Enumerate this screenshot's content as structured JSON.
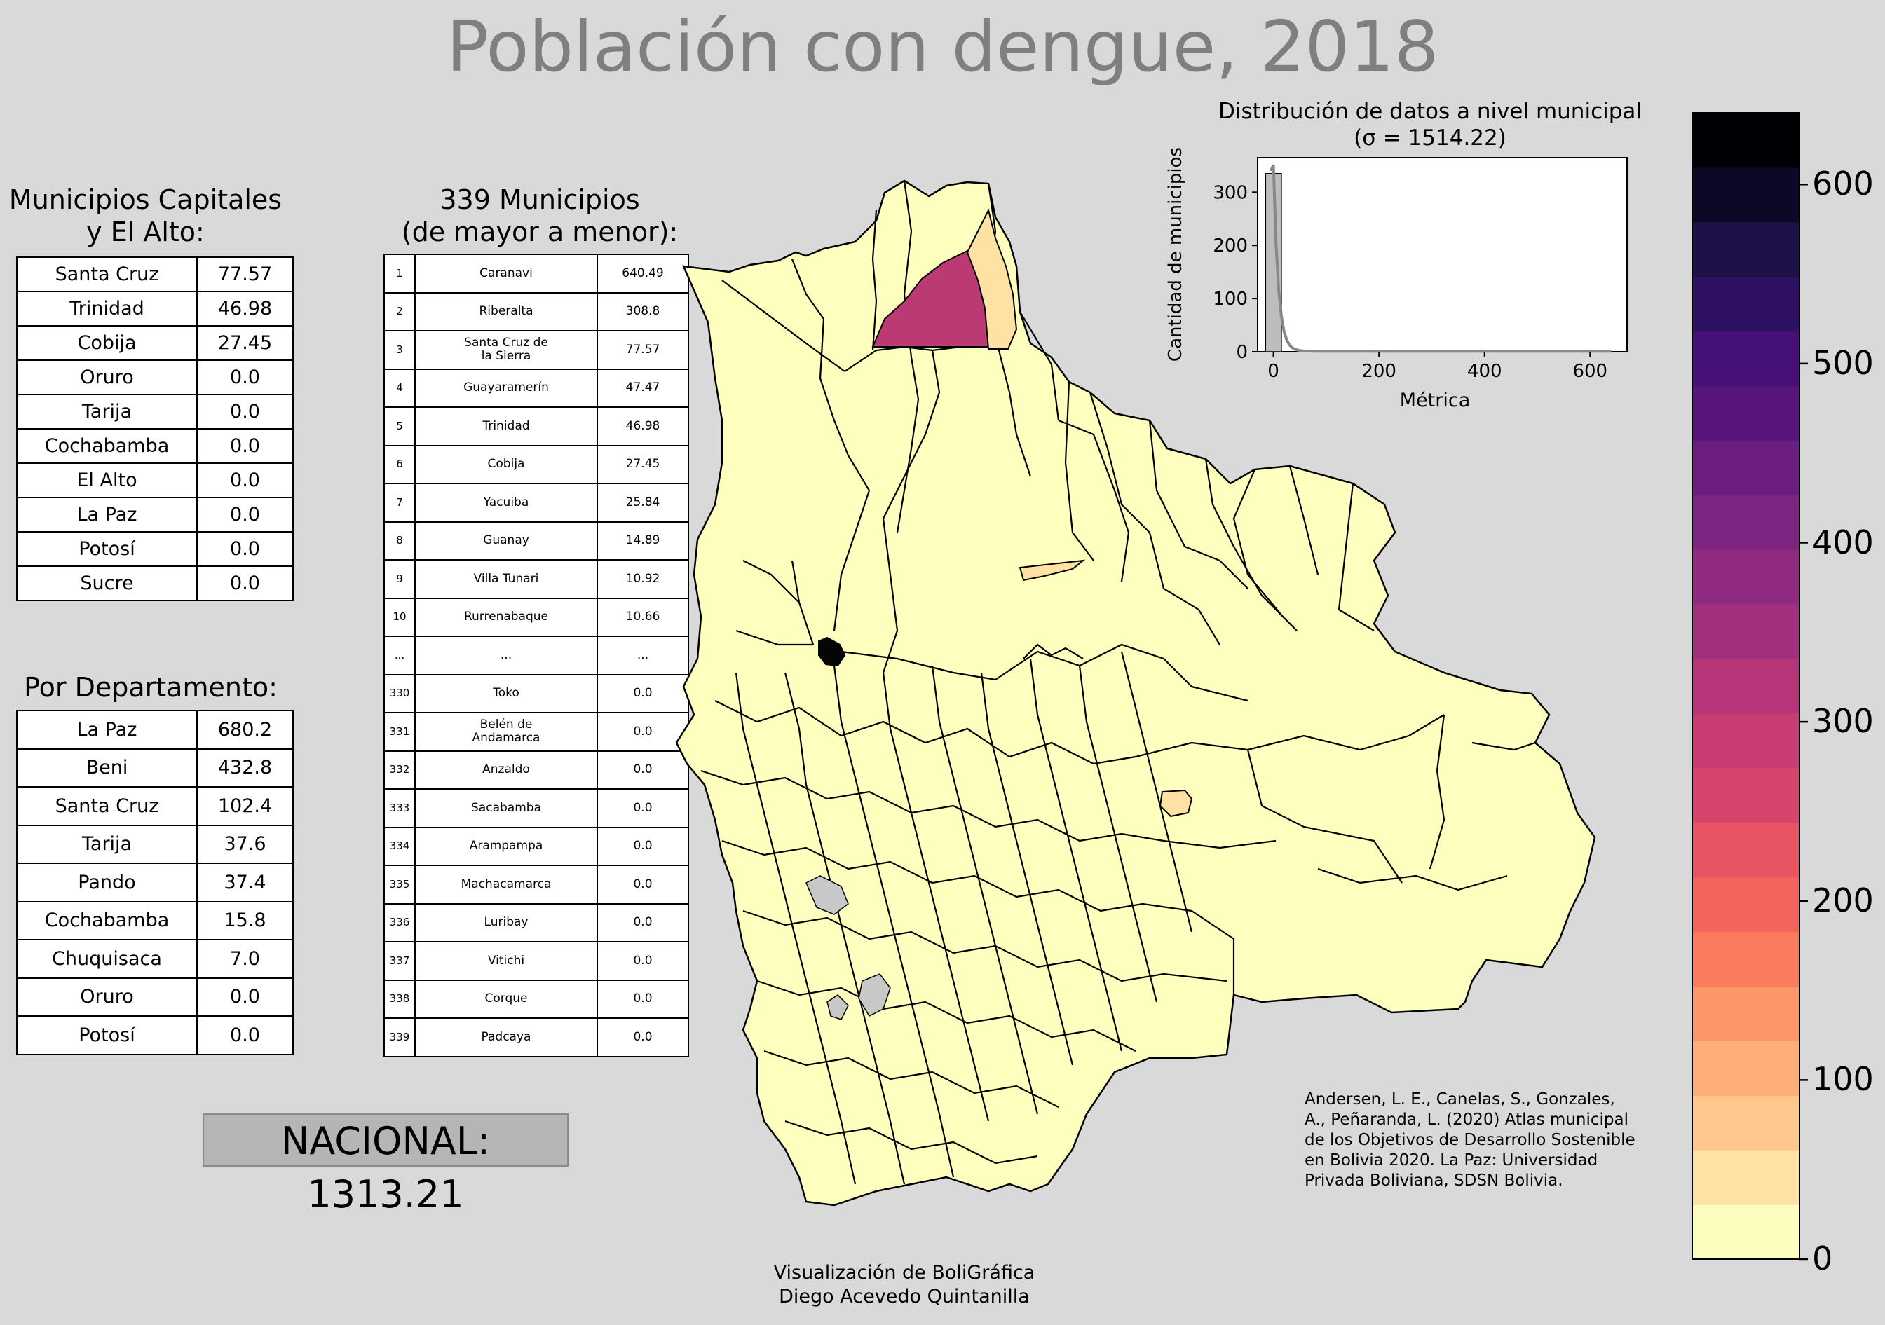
{
  "title": "Población con dengue, 2018",
  "capitals": {
    "title": "Municipios Capitales\ny El Alto:",
    "rows": [
      {
        "name": "Santa Cruz",
        "value": "77.57"
      },
      {
        "name": "Trinidad",
        "value": "46.98"
      },
      {
        "name": "Cobija",
        "value": "27.45"
      },
      {
        "name": "Oruro",
        "value": "0.0"
      },
      {
        "name": "Tarija",
        "value": "0.0"
      },
      {
        "name": "Cochabamba",
        "value": "0.0"
      },
      {
        "name": "El Alto",
        "value": "0.0"
      },
      {
        "name": "La Paz",
        "value": "0.0"
      },
      {
        "name": "Potosí",
        "value": "0.0"
      },
      {
        "name": "Sucre",
        "value": "0.0"
      }
    ]
  },
  "departments": {
    "title": "Por Departamento:",
    "rows": [
      {
        "name": "La Paz",
        "value": "680.2"
      },
      {
        "name": "Beni",
        "value": "432.8"
      },
      {
        "name": "Santa Cruz",
        "value": "102.4"
      },
      {
        "name": "Tarija",
        "value": "37.6"
      },
      {
        "name": "Pando",
        "value": "37.4"
      },
      {
        "name": "Cochabamba",
        "value": "15.8"
      },
      {
        "name": "Chuquisaca",
        "value": "7.0"
      },
      {
        "name": "Oruro",
        "value": "0.0"
      },
      {
        "name": "Potosí",
        "value": "0.0"
      }
    ]
  },
  "municipalities": {
    "title": "339 Municipios\n(de mayor a menor):",
    "rows": [
      {
        "rank": "1",
        "name": "Caranavi",
        "value": "640.49"
      },
      {
        "rank": "2",
        "name": "Riberalta",
        "value": "308.8"
      },
      {
        "rank": "3",
        "name": "Santa Cruz de\nla Sierra",
        "value": "77.57"
      },
      {
        "rank": "4",
        "name": "Guayaramerín",
        "value": "47.47"
      },
      {
        "rank": "5",
        "name": "Trinidad",
        "value": "46.98"
      },
      {
        "rank": "6",
        "name": "Cobija",
        "value": "27.45"
      },
      {
        "rank": "7",
        "name": "Yacuiba",
        "value": "25.84"
      },
      {
        "rank": "8",
        "name": "Guanay",
        "value": "14.89"
      },
      {
        "rank": "9",
        "name": "Villa Tunari",
        "value": "10.92"
      },
      {
        "rank": "10",
        "name": "Rurrenabaque",
        "value": "10.66"
      },
      {
        "rank": "...",
        "name": "...",
        "value": "..."
      },
      {
        "rank": "330",
        "name": "Toko",
        "value": "0.0"
      },
      {
        "rank": "331",
        "name": "Belén de\nAndamarca",
        "value": "0.0"
      },
      {
        "rank": "332",
        "name": "Anzaldo",
        "value": "0.0"
      },
      {
        "rank": "333",
        "name": "Sacabamba",
        "value": "0.0"
      },
      {
        "rank": "334",
        "name": "Arampampa",
        "value": "0.0"
      },
      {
        "rank": "335",
        "name": "Machacamarca",
        "value": "0.0"
      },
      {
        "rank": "336",
        "name": "Luribay",
        "value": "0.0"
      },
      {
        "rank": "337",
        "name": "Vitichi",
        "value": "0.0"
      },
      {
        "rank": "338",
        "name": "Corque",
        "value": "0.0"
      },
      {
        "rank": "339",
        "name": "Padcaya",
        "value": "0.0"
      }
    ]
  },
  "nacional": "NACIONAL: 1313.21",
  "histogram": {
    "title": "Distribución de datos a nivel municipal\n(σ = 1514.22)",
    "xlabel": "Métrica",
    "ylabel": "Cantidad de municipios",
    "x_ticks": [
      "0",
      "200",
      "400",
      "600"
    ],
    "y_ticks": [
      "0",
      "100",
      "200",
      "300"
    ],
    "xlim": [
      -30,
      670
    ],
    "ylim": [
      0,
      365
    ],
    "bins": [
      {
        "x0": -15,
        "x1": 15,
        "count": 335
      }
    ],
    "kde_color": "#888888"
  },
  "colorbar": {
    "ticks": [
      "0",
      "100",
      "200",
      "300",
      "400",
      "500",
      "600"
    ],
    "vmin": 0,
    "vmax": 640,
    "colors": [
      "#fcfdbf",
      "#fde2a3",
      "#fec88c",
      "#feaf78",
      "#fd9668",
      "#fa7b5e",
      "#f3655c",
      "#e95462",
      "#d8456c",
      "#c73d73",
      "#b63679",
      "#a3307e",
      "#912b81",
      "#7e2482",
      "#6b1d81",
      "#59157e",
      "#451077",
      "#2f1163",
      "#1d1147",
      "#0c0927",
      "#000004"
    ]
  },
  "citation": "Andersen, L. E., Canelas, S., Gonzales,\nA., Peñaranda, L. (2020) Atlas municipal\nde los Objetivos de Desarrollo Sostenible\nen Bolivia 2020. La Paz: Universidad\nPrivada Boliviana, SDSN Bolivia.",
  "credits": "Visualización de BoliGráfica\nDiego Acevedo Quintanilla",
  "map_colors": {
    "base": "#fefebe",
    "riberalta": "#bb3a73",
    "caranavi": "#050505",
    "light_orange": "#fde2a3",
    "lake": "#c8c8c8",
    "border": "#000000"
  }
}
